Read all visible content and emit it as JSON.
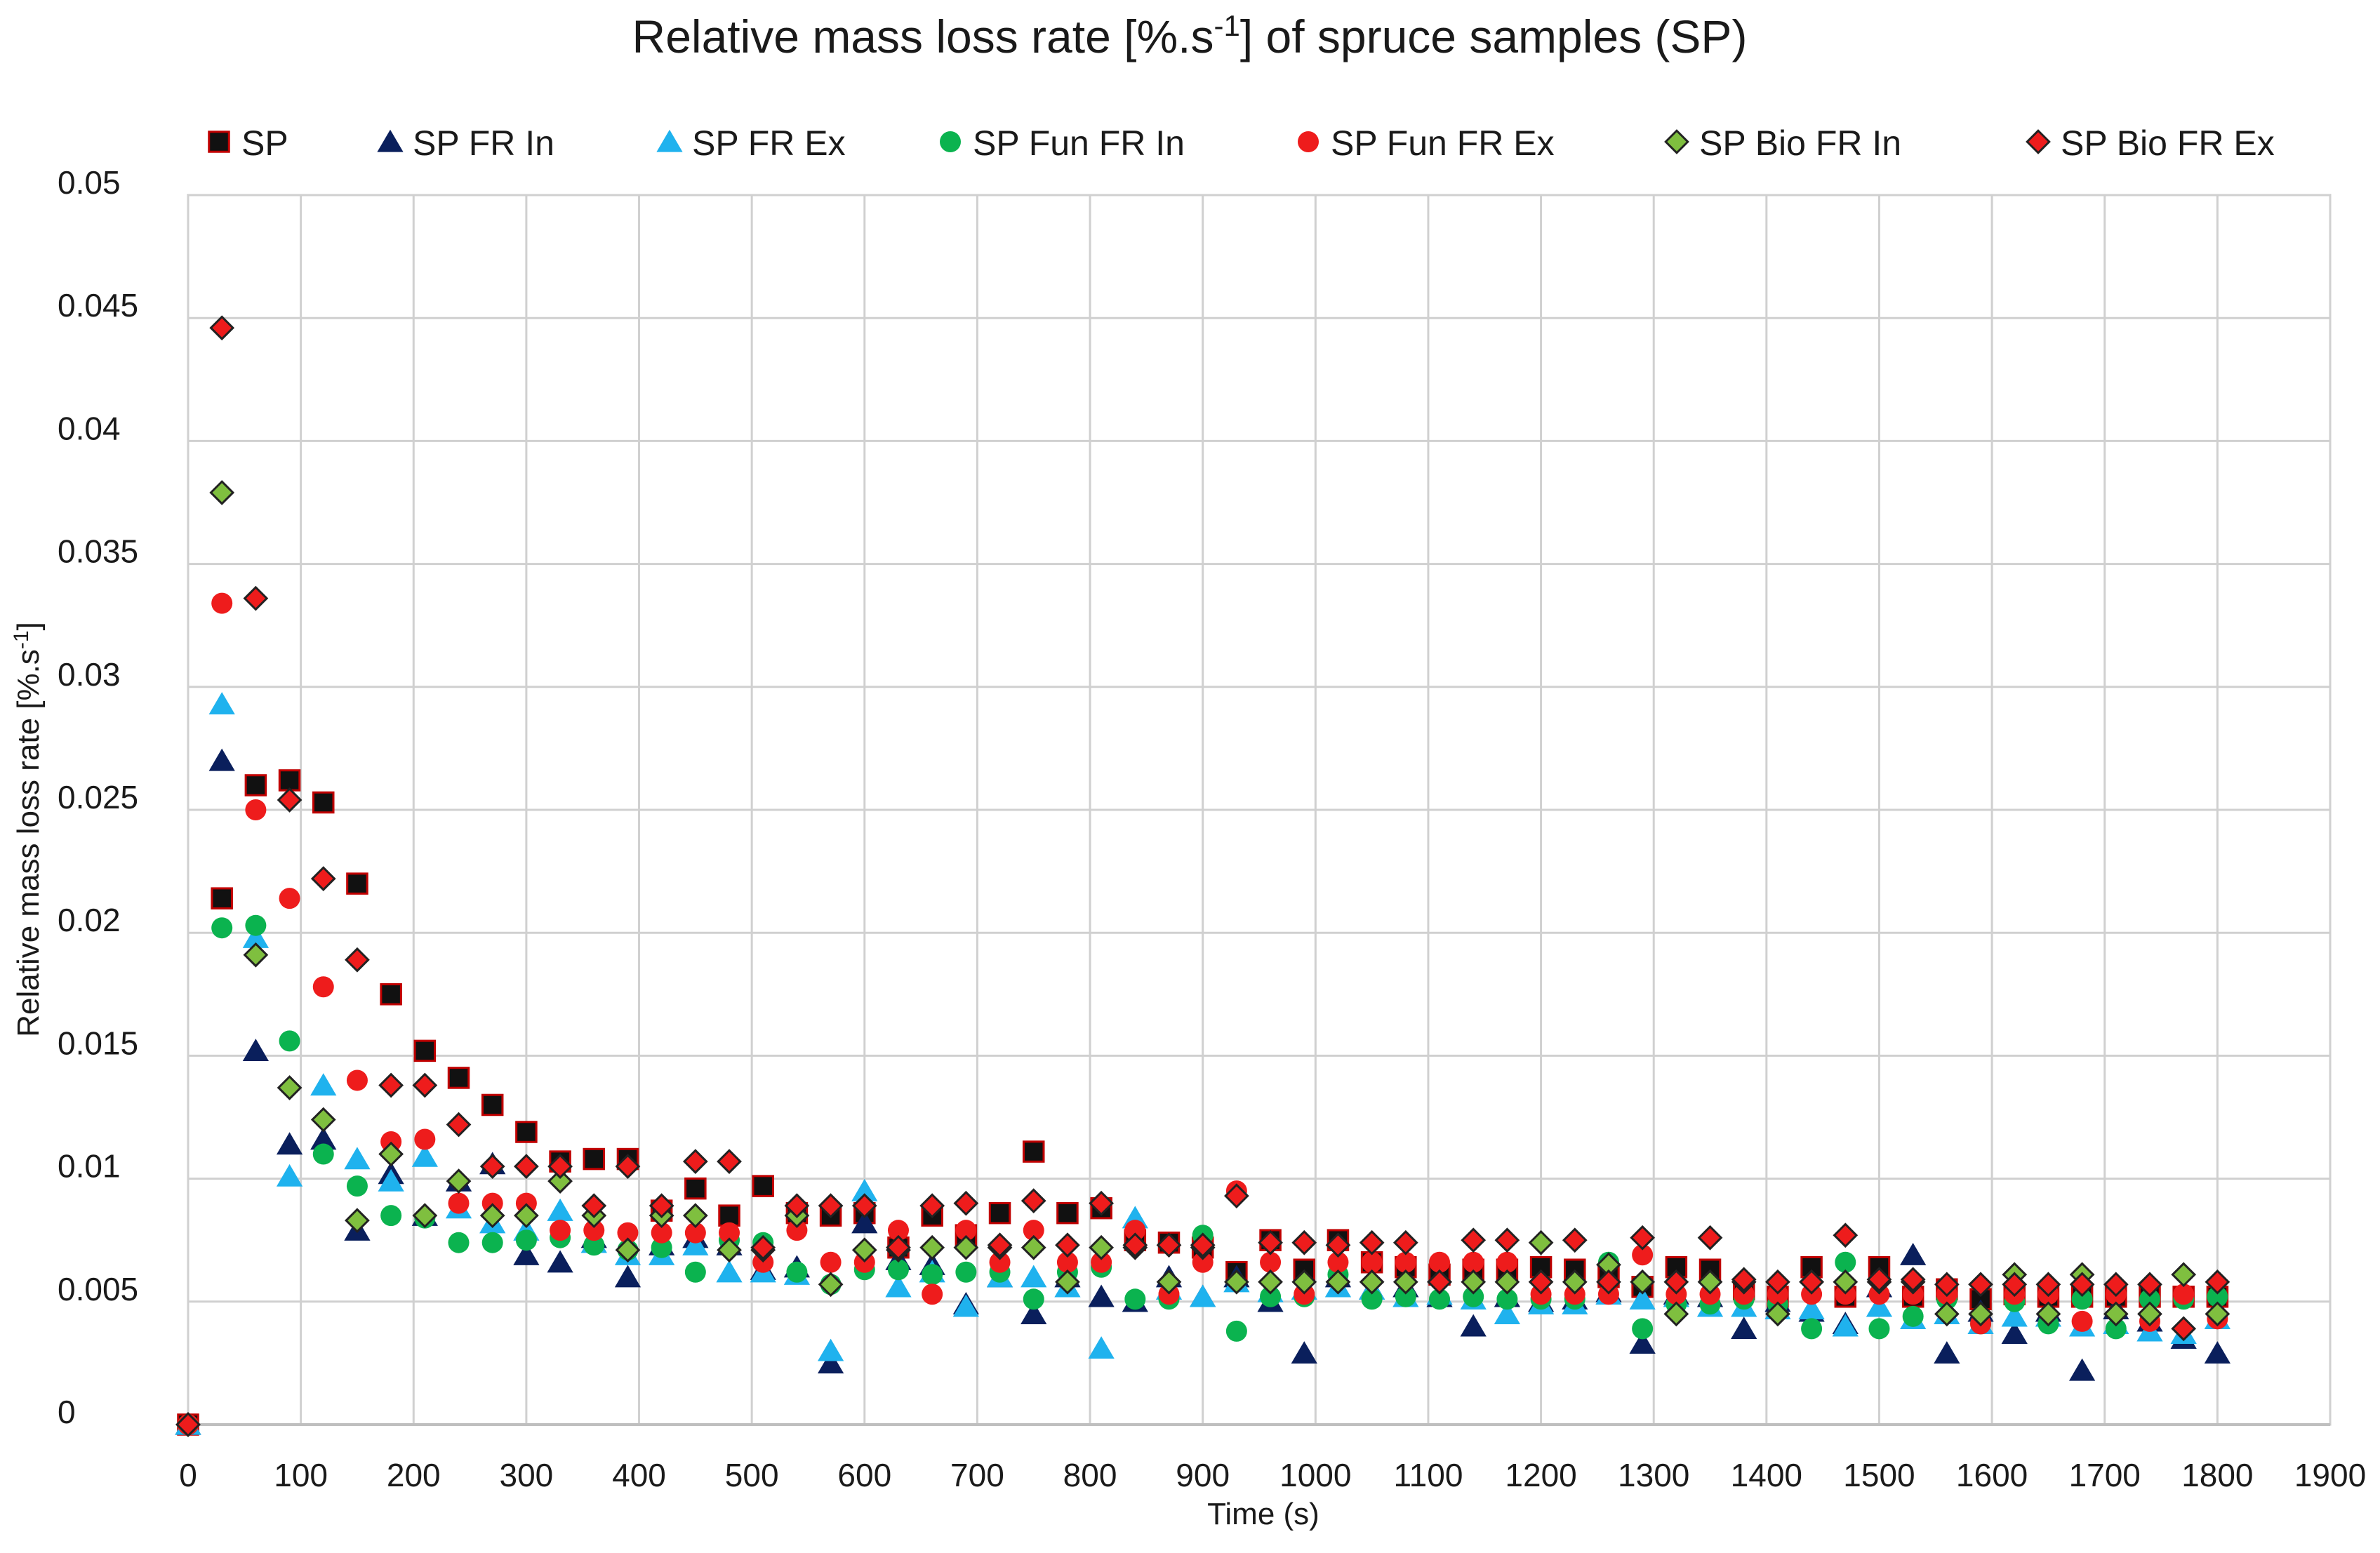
{
  "chart_data": {
    "type": "scatter",
    "title": "Relative mass loss rate [%.s-1] of spruce samples (SP)",
    "title_parts": {
      "before": "Relative mass loss rate [%.s",
      "superscript": "-1",
      "after": "] of spruce samples (SP)"
    },
    "xlabel": "Time (s)",
    "ylabel": "Relative mass loss rate [%.s-1]",
    "ylabel_parts": {
      "before": "Relative mass loss rate [%.s",
      "superscript": "-1",
      "after": "]"
    },
    "xlim": [
      0,
      1900
    ],
    "ylim": [
      0,
      0.05
    ],
    "x_ticks": [
      0,
      100,
      200,
      300,
      400,
      500,
      600,
      700,
      800,
      900,
      1000,
      1100,
      1200,
      1300,
      1400,
      1500,
      1600,
      1700,
      1800,
      1900
    ],
    "y_ticks": [
      0,
      0.005,
      0.01,
      0.015,
      0.02,
      0.025,
      0.03,
      0.035,
      0.04,
      0.045,
      0.05
    ],
    "x_tick_labels": [
      "0",
      "100",
      "200",
      "300",
      "400",
      "500",
      "600",
      "700",
      "800",
      "900",
      "1000",
      "1100",
      "1200",
      "1300",
      "1400",
      "1500",
      "1600",
      "1700",
      "1800",
      "1900"
    ],
    "y_tick_labels": [
      "0",
      "0.005",
      "0.01",
      "0.015",
      "0.02",
      "0.025",
      "0.03",
      "0.035",
      "0.04",
      "0.045",
      "0.05"
    ],
    "grid": true,
    "legend_position": "top",
    "x": [
      0,
      30,
      60,
      90,
      120,
      150,
      180,
      210,
      240,
      270,
      300,
      330,
      360,
      390,
      420,
      450,
      480,
      510,
      540,
      570,
      600,
      630,
      660,
      690,
      720,
      750,
      780,
      810,
      840,
      870,
      900,
      930,
      960,
      990,
      1020,
      1050,
      1080,
      1110,
      1140,
      1170,
      1200,
      1230,
      1260,
      1290,
      1320,
      1350,
      1380,
      1410,
      1440,
      1470,
      1500,
      1530,
      1560,
      1590,
      1620,
      1650,
      1680,
      1710,
      1740,
      1770,
      1800
    ],
    "series": [
      {
        "name": "SP",
        "marker": "square",
        "fill": "#111111",
        "stroke": "#c00000",
        "values": [
          0,
          0.0214,
          0.026,
          0.0262,
          0.0253,
          0.022,
          0.0175,
          0.0152,
          0.0141,
          0.013,
          0.0119,
          0.0107,
          0.0108,
          0.0108,
          0.0087,
          0.0096,
          0.0085,
          0.0097,
          0.0086,
          0.0085,
          0.0086,
          0.0072,
          0.0085,
          0.0077,
          0.0086,
          0.0111,
          0.0086,
          0.0088,
          0.0075,
          0.0074,
          0.0072,
          0.0062,
          0.0075,
          0.0063,
          0.0075,
          0.0066,
          0.0064,
          0.0061,
          0.0063,
          0.0063,
          0.0064,
          0.0063,
          0.006,
          0.0056,
          0.0064,
          0.0063,
          0.0055,
          0.0052,
          0.0064,
          0.0052,
          0.0064,
          0.0052,
          0.0055,
          0.0051,
          0.0053,
          0.0052,
          0.0052,
          0.0052,
          0.0052,
          0.0052,
          0.0052
        ]
      },
      {
        "name": "SP FR In",
        "marker": "triangle",
        "fill": "#0a1f5c",
        "stroke": "none",
        "values": [
          0,
          0.027,
          0.0152,
          0.0114,
          0.0116,
          0.0079,
          0.0102,
          0.0085,
          0.0099,
          0.0106,
          0.0069,
          0.0066,
          0.0076,
          0.006,
          0.0073,
          0.0076,
          0.0073,
          0.0063,
          0.0064,
          0.0025,
          0.0082,
          0.0067,
          0.0065,
          0.0049,
          0.006,
          0.0045,
          0.006,
          0.0052,
          0.005,
          0.006,
          0.0052,
          0.006,
          0.005,
          0.0029,
          0.006,
          0.0055,
          0.0056,
          0.0052,
          0.004,
          0.0052,
          0.005,
          0.0051,
          0.0054,
          0.0033,
          0.0053,
          0.0052,
          0.0039,
          0.005,
          0.0046,
          0.0041,
          0.0056,
          0.0069,
          0.0029,
          0.0046,
          0.0037,
          0.0046,
          0.0022,
          0.0047,
          0.0042,
          0.0035,
          0.0029
        ]
      },
      {
        "name": "SP FR Ex",
        "marker": "triangle",
        "fill": "#1fb2ee",
        "stroke": "none",
        "values": [
          0,
          0.0293,
          0.0198,
          0.0101,
          0.0138,
          0.0108,
          0.0099,
          0.0109,
          0.0088,
          0.0082,
          0.0079,
          0.0087,
          0.0074,
          0.0069,
          0.0069,
          0.0073,
          0.0062,
          0.0062,
          0.0061,
          0.003,
          0.0095,
          0.0056,
          0.0062,
          0.0048,
          0.006,
          0.006,
          0.0056,
          0.0031,
          0.0084,
          0.0055,
          0.0052,
          0.0058,
          0.0054,
          0.0055,
          0.0056,
          0.0055,
          0.0052,
          0.0053,
          0.0051,
          0.0045,
          0.0049,
          0.0049,
          0.0053,
          0.0051,
          0.0052,
          0.0048,
          0.0048,
          0.0047,
          0.0047,
          0.004,
          0.0048,
          0.0043,
          0.0045,
          0.0041,
          0.0044,
          0.0044,
          0.004,
          0.0041,
          0.0038,
          0.0037,
          0.0043
        ]
      },
      {
        "name": "SP Fun FR In",
        "marker": "circle",
        "fill": "#0bb34f",
        "stroke": "none",
        "values": [
          0,
          0.0202,
          0.0203,
          0.0156,
          0.011,
          0.0097,
          0.0085,
          0.0084,
          0.0074,
          0.0074,
          0.0075,
          0.0076,
          0.0073,
          0.0071,
          0.0072,
          0.0062,
          0.0075,
          0.0074,
          0.0062,
          0.0057,
          0.0063,
          0.0063,
          0.0061,
          0.0062,
          0.0062,
          0.0051,
          0.0062,
          0.0064,
          0.0051,
          0.0051,
          0.0077,
          0.0038,
          0.0052,
          0.0052,
          0.0061,
          0.0051,
          0.0052,
          0.0051,
          0.0052,
          0.0051,
          0.0051,
          0.0051,
          0.0066,
          0.0039,
          0.0049,
          0.0049,
          0.0051,
          0.0049,
          0.0039,
          0.0066,
          0.0039,
          0.0044,
          0.0051,
          0.0041,
          0.005,
          0.0041,
          0.0051,
          0.0039,
          0.0051,
          0.0051,
          0.0052
        ]
      },
      {
        "name": "SP Fun FR Ex",
        "marker": "circle",
        "fill": "#ee1c1c",
        "stroke": "none",
        "values": [
          0,
          0.0334,
          0.025,
          0.0214,
          0.0178,
          0.014,
          0.0115,
          0.0116,
          0.009,
          0.009,
          0.009,
          0.0079,
          0.0079,
          0.0078,
          0.0078,
          0.0078,
          0.0078,
          0.0066,
          0.0079,
          0.0066,
          0.0066,
          0.0079,
          0.0053,
          0.0079,
          0.0066,
          0.0079,
          0.0066,
          0.0066,
          0.0079,
          0.0053,
          0.0066,
          0.0095,
          0.0066,
          0.0053,
          0.0066,
          0.0066,
          0.0066,
          0.0066,
          0.0066,
          0.0066,
          0.0053,
          0.0053,
          0.0053,
          0.0069,
          0.0053,
          0.0053,
          0.0053,
          0.0053,
          0.0053,
          0.0053,
          0.0053,
          0.0053,
          0.0053,
          0.0041,
          0.0053,
          0.0053,
          0.0042,
          0.0053,
          0.0042,
          0.0053,
          0.0043
        ]
      },
      {
        "name": "SP Bio FR In",
        "marker": "diamond",
        "fill": "#7fbf3f",
        "stroke": "#222222",
        "values": [
          0,
          0.0379,
          0.0191,
          0.0137,
          0.0124,
          0.0083,
          0.011,
          0.0085,
          0.0099,
          0.0085,
          0.0085,
          0.0099,
          0.0085,
          0.0071,
          0.0085,
          0.0085,
          0.0071,
          0.0071,
          0.0085,
          0.0057,
          0.0071,
          0.0071,
          0.0072,
          0.0072,
          0.0072,
          0.0072,
          0.0058,
          0.0072,
          0.0072,
          0.0058,
          0.0072,
          0.0058,
          0.0058,
          0.0058,
          0.0058,
          0.0058,
          0.0058,
          0.0058,
          0.0058,
          0.0058,
          0.0074,
          0.0058,
          0.0065,
          0.0058,
          0.0045,
          0.0058,
          0.0058,
          0.0045,
          0.0058,
          0.0058,
          0.0058,
          0.0058,
          0.0045,
          0.0045,
          0.0061,
          0.0045,
          0.0061,
          0.0045,
          0.0045,
          0.0061,
          0.0045
        ]
      },
      {
        "name": "SP Bio FR Ex",
        "marker": "diamond",
        "fill": "#ee1c1c",
        "stroke": "#222222",
        "values": [
          0,
          0.0446,
          0.0336,
          0.0254,
          0.0222,
          0.0189,
          0.0138,
          0.0138,
          0.0122,
          0.0105,
          0.0105,
          0.0105,
          0.0089,
          0.0105,
          0.0089,
          0.0107,
          0.0107,
          0.0072,
          0.0089,
          0.0089,
          0.0089,
          0.0072,
          0.0089,
          0.009,
          0.0073,
          0.0091,
          0.0073,
          0.009,
          0.0073,
          0.0073,
          0.0073,
          0.0093,
          0.0074,
          0.0074,
          0.0073,
          0.0074,
          0.0074,
          0.0058,
          0.0075,
          0.0075,
          0.0058,
          0.0075,
          0.0058,
          0.0076,
          0.0058,
          0.0076,
          0.0059,
          0.0058,
          0.0058,
          0.0077,
          0.0059,
          0.0059,
          0.0057,
          0.0057,
          0.0057,
          0.0057,
          0.0057,
          0.0057,
          0.0057,
          0.0039,
          0.0058
        ]
      }
    ]
  }
}
